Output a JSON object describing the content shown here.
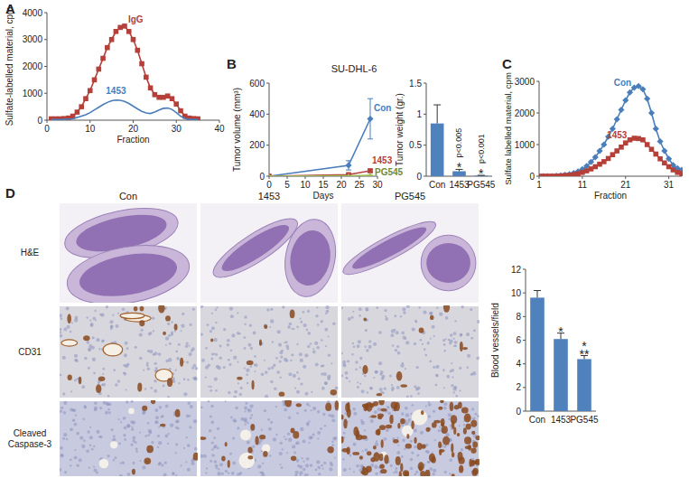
{
  "panel_labels": [
    "A",
    "B",
    "C",
    "D"
  ],
  "chart_data": [
    {
      "type": "line",
      "x_label": "Fraction",
      "y_label": "Sulfate-labelled material, cpm",
      "x": [
        1,
        2,
        3,
        4,
        5,
        6,
        7,
        8,
        9,
        10,
        11,
        12,
        13,
        14,
        15,
        16,
        17,
        18,
        19,
        20,
        21,
        22,
        23,
        24,
        25,
        26,
        27,
        28,
        29,
        30,
        31,
        32,
        33,
        34,
        35
      ],
      "series": [
        {
          "name": "IgG",
          "color": "#b5403a",
          "marker": "square",
          "values": [
            50,
            50,
            50,
            60,
            80,
            150,
            300,
            500,
            800,
            1100,
            1500,
            1900,
            2300,
            2700,
            3000,
            3300,
            3450,
            3500,
            3300,
            3000,
            2600,
            2100,
            1600,
            1200,
            950,
            850,
            850,
            900,
            800,
            600,
            350,
            150,
            80,
            60,
            50
          ]
        },
        {
          "name": "1453",
          "color": "#4a7ebb",
          "marker": "none",
          "values": [
            20,
            20,
            20,
            30,
            40,
            50,
            100,
            150,
            200,
            280,
            380,
            480,
            580,
            660,
            720,
            750,
            740,
            700,
            620,
            520,
            420,
            330,
            270,
            250,
            300,
            380,
            440,
            450,
            400,
            280,
            150,
            60,
            30,
            20,
            20
          ]
        }
      ],
      "xlim": [
        0,
        40
      ],
      "xticks": [
        0,
        10,
        20,
        30,
        40
      ],
      "ylim": [
        0,
        4000
      ],
      "yticks": [
        0,
        1000,
        2000,
        3000,
        4000
      ],
      "grid": false
    },
    {
      "type": "line",
      "title": "SU-DHL-6",
      "x_label": "Days",
      "y_label": "Tumor volume (mm³)",
      "x": [
        0,
        22,
        28
      ],
      "series": [
        {
          "name": "Con",
          "color": "#4a7ebb",
          "marker": "diamond",
          "values": [
            0,
            70,
            370
          ],
          "errors": [
            0,
            30,
            130
          ]
        },
        {
          "name": "1453",
          "color": "#b5403a",
          "marker": "square",
          "values": [
            0,
            10,
            35
          ],
          "errors": [
            0,
            5,
            10
          ]
        },
        {
          "name": "PG545",
          "color": "#9bbb59",
          "marker": "triangle",
          "values": [
            0,
            2,
            5
          ],
          "errors": [
            0,
            1,
            2
          ]
        }
      ],
      "xlim": [
        0,
        30
      ],
      "xticks": [
        0,
        5,
        10,
        15,
        20,
        25,
        30
      ],
      "ylim": [
        0,
        600
      ],
      "yticks": [
        0,
        200,
        400,
        600
      ],
      "grid": false
    },
    {
      "type": "bar",
      "y_label": "Tumor weight (gr.)",
      "categories": [
        "Con",
        "1453",
        "PG545"
      ],
      "values": [
        0.85,
        0.08,
        0.01
      ],
      "errors": [
        0.3,
        0.03,
        0.005
      ],
      "color": "#4f81bd",
      "ylim": [
        0,
        1.5
      ],
      "yticks": [
        0,
        0.5,
        1,
        1.5
      ],
      "grid": false,
      "annotations": [
        {
          "category": "1453",
          "text": "*"
        },
        {
          "category": "1453",
          "text": "p<0.005"
        },
        {
          "category": "PG545",
          "text": "*"
        },
        {
          "category": "PG545",
          "text": "p<0.001"
        }
      ]
    },
    {
      "type": "line",
      "x_label": "Fraction",
      "y_label": "Sulfate labelled material, cpm",
      "x": [
        1,
        2,
        3,
        4,
        5,
        6,
        7,
        8,
        9,
        10,
        11,
        12,
        13,
        14,
        15,
        16,
        17,
        18,
        19,
        20,
        21,
        22,
        23,
        24,
        25,
        26,
        27,
        28,
        29,
        30,
        31,
        32,
        33,
        34
      ],
      "series": [
        {
          "name": "Con",
          "color": "#4a7ebb",
          "marker": "diamond",
          "values": [
            0,
            0,
            0,
            0,
            10,
            20,
            40,
            60,
            100,
            150,
            220,
            320,
            450,
            600,
            800,
            1000,
            1250,
            1500,
            1800,
            2100,
            2400,
            2650,
            2800,
            2850,
            2750,
            2450,
            2000,
            1500,
            1100,
            800,
            550,
            350,
            250,
            200
          ]
        },
        {
          "name": "1453",
          "color": "#b5403a",
          "marker": "square",
          "values": [
            0,
            0,
            0,
            0,
            0,
            10,
            20,
            30,
            50,
            80,
            120,
            170,
            230,
            300,
            380,
            460,
            560,
            680,
            800,
            920,
            1050,
            1150,
            1200,
            1190,
            1150,
            1000,
            850,
            700,
            550,
            420,
            300,
            200,
            120,
            80
          ]
        }
      ],
      "xlim": [
        1,
        34
      ],
      "xticks": [
        1,
        11,
        21,
        31
      ],
      "ylim": [
        0,
        3000
      ],
      "yticks": [
        0,
        1000,
        2000,
        3000
      ],
      "grid": false
    },
    {
      "type": "bar",
      "y_label": "Blood vessels/field",
      "categories": [
        "Con",
        "1453",
        "PG545"
      ],
      "values": [
        9.6,
        6.1,
        4.4
      ],
      "errors": [
        0.6,
        0.5,
        0.3
      ],
      "color": "#4f81bd",
      "ylim": [
        0,
        12
      ],
      "yticks": [
        0,
        2,
        4,
        6,
        8,
        10,
        12
      ],
      "grid": false,
      "annotations": [
        {
          "category": "1453",
          "text": "*"
        },
        {
          "category": "PG545",
          "text": "**"
        },
        {
          "category": "PG545",
          "text": "*"
        }
      ]
    }
  ],
  "histology": {
    "columns": [
      "Con",
      "1453",
      "PG545"
    ],
    "rows": [
      "H&E",
      "CD31",
      "Cleaved Caspase-3"
    ]
  }
}
